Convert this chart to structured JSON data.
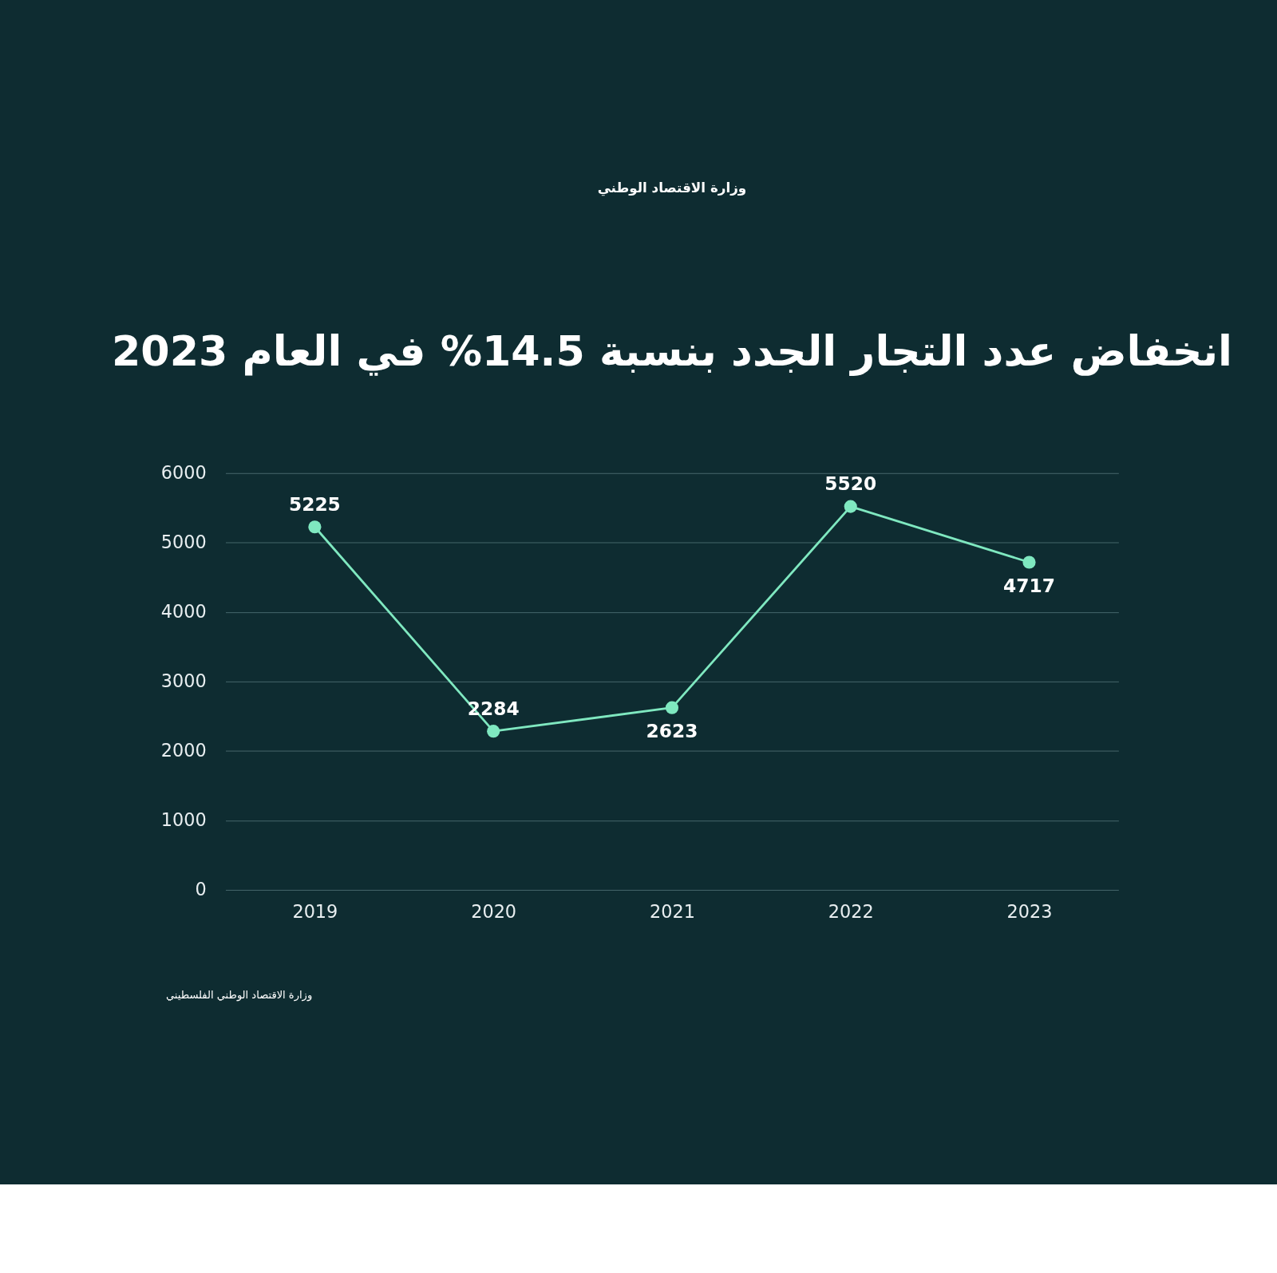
{
  "chart_data": {
    "type": "line",
    "title": "انخفاض عدد التجار الجدد بنسبة 14.5% في العام 2023",
    "categories": [
      "2019",
      "2020",
      "2021",
      "2022",
      "2023"
    ],
    "series": [
      {
        "color": "#7fe8c0",
        "values": [
          5225,
          2284,
          2623,
          5520,
          4717
        ]
      }
    ],
    "ylim": [
      0,
      6000
    ],
    "yticks": [
      0,
      1000,
      2000,
      3000,
      4000,
      5000,
      6000
    ],
    "grid": "y",
    "marker": "circle",
    "data_labels": true,
    "annotations": [
      "وزارة الاقتصاد الوطني",
      "وزارة الاقتصاد الوطني الفلسطيني"
    ]
  }
}
